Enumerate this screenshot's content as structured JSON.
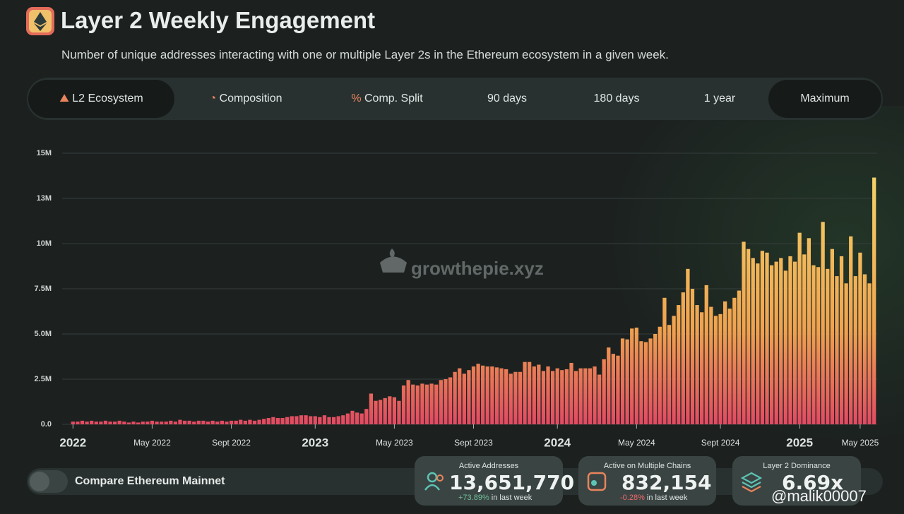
{
  "header": {
    "title": "Layer 2 Weekly Engagement",
    "subtitle": "Number of unique addresses interacting with one or multiple Layer 2s in the Ethereum ecosystem in a given week."
  },
  "tabs": [
    "L2 Ecosystem",
    "Composition",
    "Comp. Split",
    "90 days",
    "180 days",
    "1 year",
    "Maximum"
  ],
  "toggle": "Compare Ethereum Mainnet",
  "stats": [
    {
      "title": "Active Addresses",
      "value": "13,651,770",
      "change": "+73.89%",
      "note": "in last week"
    },
    {
      "title": "Active on Multiple Chains",
      "value": "832,154",
      "change": "-0.28%",
      "note": "in last week"
    },
    {
      "title": "Layer 2 Dominance",
      "value": "6.69x"
    }
  ],
  "watermarks": {
    "brand": "growthepie.xyz",
    "user": "@malik00007"
  },
  "chart_data": {
    "type": "bar",
    "categories": [
      "2022",
      null,
      null,
      null,
      null,
      null,
      null,
      null,
      null,
      null,
      null,
      null,
      null,
      null,
      null,
      null,
      null,
      "May 2022",
      null,
      null,
      null,
      null,
      null,
      null,
      null,
      null,
      null,
      null,
      null,
      null,
      null,
      null,
      null,
      null,
      "Sept 2022",
      null,
      null,
      null,
      null,
      null,
      null,
      null,
      null,
      null,
      null,
      null,
      null,
      null,
      null,
      null,
      null,
      null,
      "2023",
      null,
      null,
      null,
      null,
      null,
      null,
      null,
      null,
      null,
      null,
      null,
      null,
      null,
      null,
      null,
      null,
      "May 2023",
      null,
      null,
      null,
      null,
      null,
      null,
      null,
      null,
      null,
      null,
      null,
      null,
      null,
      null,
      null,
      null,
      "Sept 2023",
      null,
      null,
      null,
      null,
      null,
      null,
      null,
      null,
      null,
      null,
      null,
      null,
      null,
      null,
      null,
      null,
      null,
      "2024",
      null,
      null,
      null,
      null,
      null,
      null,
      null,
      null,
      null,
      null,
      null,
      null,
      null,
      null,
      null,
      null,
      "May 2024",
      null,
      null,
      null,
      null,
      null,
      null,
      null,
      null,
      null,
      null,
      null,
      null,
      null,
      null,
      null,
      null,
      null,
      "Sept 2024",
      null,
      null,
      null,
      null,
      null,
      null,
      null,
      null,
      null,
      null,
      null,
      null,
      null,
      null,
      null,
      null,
      "2025",
      null,
      null,
      null,
      null,
      null,
      null,
      null,
      null,
      null,
      null,
      null,
      null,
      "May 2025",
      null,
      null,
      null
    ],
    "values": [
      150000,
      150000,
      200000,
      150000,
      200000,
      150000,
      150000,
      200000,
      150000,
      150000,
      200000,
      150000,
      100000,
      150000,
      100000,
      150000,
      150000,
      200000,
      150000,
      150000,
      150000,
      200000,
      150000,
      250000,
      200000,
      200000,
      150000,
      200000,
      200000,
      150000,
      200000,
      150000,
      200000,
      150000,
      200000,
      200000,
      250000,
      200000,
      250000,
      200000,
      250000,
      300000,
      350000,
      400000,
      350000,
      350000,
      400000,
      450000,
      450000,
      500000,
      500000,
      450000,
      450000,
      400000,
      500000,
      400000,
      400000,
      450000,
      500000,
      600000,
      750000,
      650000,
      600000,
      850000,
      1700000,
      1300000,
      1350000,
      1450000,
      1550000,
      1500000,
      1300000,
      2150000,
      2450000,
      2200000,
      2150000,
      2250000,
      2200000,
      2250000,
      2200000,
      2450000,
      2500000,
      2600000,
      2900000,
      3100000,
      2800000,
      3000000,
      3200000,
      3350000,
      3250000,
      3200000,
      3200000,
      3150000,
      3100000,
      3050000,
      2800000,
      2900000,
      2900000,
      3450000,
      3450000,
      3200000,
      3300000,
      2950000,
      3200000,
      2950000,
      3100000,
      3000000,
      3050000,
      3400000,
      2950000,
      3100000,
      3100000,
      3100000,
      3200000,
      2750000,
      3600000,
      4250000,
      3900000,
      3800000,
      4750000,
      4700000,
      5300000,
      5350000,
      4600000,
      4550000,
      4750000,
      5000000,
      5400000,
      7000000,
      5500000,
      6000000,
      6600000,
      7300000,
      8600000,
      7500000,
      6600000,
      6200000,
      7700000,
      6500000,
      6000000,
      6100000,
      6800000,
      6400000,
      7000000,
      7400000,
      10100000,
      9700000,
      9200000,
      8900000,
      9600000,
      9500000,
      8800000,
      9000000,
      9200000,
      8500000,
      9300000,
      9000000,
      10600000,
      9400000,
      10300000,
      8800000,
      8700000,
      11200000,
      8600000,
      9700000,
      8200000,
      9300000,
      7800000,
      10400000,
      8200000,
      9500000,
      8300000,
      7800000,
      13651770
    ],
    "ylim": [
      0,
      15000000
    ],
    "yticks": [
      {
        "value": 0,
        "label": "0.0"
      },
      {
        "value": 2500000,
        "label": "2.5M"
      },
      {
        "value": 5000000,
        "label": "5.0M"
      },
      {
        "value": 7500000,
        "label": "7.5M"
      },
      {
        "value": 10000000,
        "label": "10M"
      },
      {
        "value": 12500000,
        "label": "13M"
      },
      {
        "value": 15000000,
        "label": "15M"
      }
    ],
    "colors": [
      "#e24a62",
      "#f0a24f",
      "#f4d96c"
    ],
    "grid": true
  }
}
